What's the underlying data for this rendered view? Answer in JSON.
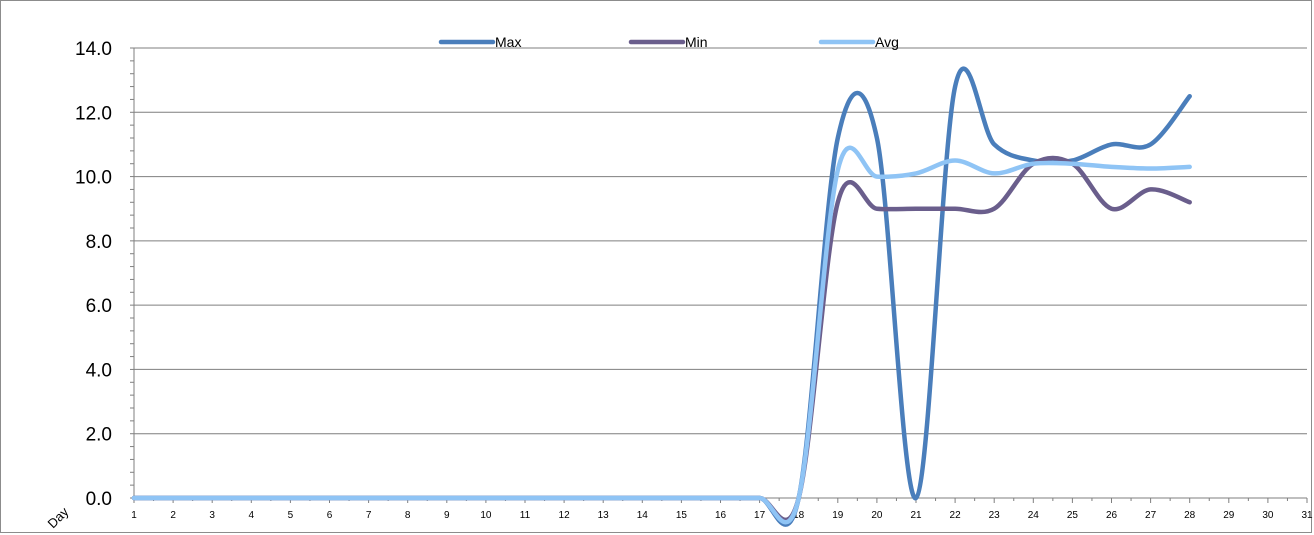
{
  "chart_data": {
    "type": "line",
    "xlabel": "Day",
    "ylabel": "",
    "ylim": [
      0,
      14
    ],
    "xlim": [
      1,
      31
    ],
    "grid": true,
    "legend_position": "top",
    "y_ticks": [
      "0.0",
      "2.0",
      "4.0",
      "6.0",
      "8.0",
      "10.0",
      "12.0",
      "14.0"
    ],
    "x_ticks": [
      "1",
      "2",
      "3",
      "4",
      "5",
      "6",
      "7",
      "8",
      "9",
      "10",
      "11",
      "12",
      "13",
      "14",
      "15",
      "16",
      "17",
      "18",
      "19",
      "20",
      "21",
      "22",
      "23",
      "24",
      "25",
      "26",
      "27",
      "28",
      "29",
      "30",
      "31"
    ],
    "series": [
      {
        "name": "Max",
        "color": "#4a7ebb",
        "x": [
          1,
          2,
          3,
          4,
          5,
          6,
          7,
          8,
          9,
          10,
          11,
          12,
          13,
          14,
          15,
          16,
          17,
          18,
          19,
          20,
          21,
          22,
          23,
          24,
          25,
          26,
          27,
          28
        ],
        "values": [
          0,
          0,
          0,
          0,
          0,
          0,
          0,
          0,
          0,
          0,
          0,
          0,
          0,
          0,
          0,
          0,
          0,
          0,
          11.2,
          11.2,
          0,
          12.8,
          11.0,
          10.5,
          10.5,
          11.0,
          11.0,
          12.5
        ]
      },
      {
        "name": "Min",
        "color": "#6a5e8c",
        "x": [
          1,
          2,
          3,
          4,
          5,
          6,
          7,
          8,
          9,
          10,
          11,
          12,
          13,
          14,
          15,
          16,
          17,
          18,
          19,
          20,
          21,
          22,
          23,
          24,
          25,
          26,
          27,
          28
        ],
        "values": [
          0,
          0,
          0,
          0,
          0,
          0,
          0,
          0,
          0,
          0,
          0,
          0,
          0,
          0,
          0,
          0,
          0,
          0,
          9.2,
          9.0,
          9.0,
          9.0,
          9.0,
          10.4,
          10.4,
          9.0,
          9.6,
          9.2
        ]
      },
      {
        "name": "Avg",
        "color": "#8fc4f5",
        "x": [
          1,
          2,
          3,
          4,
          5,
          6,
          7,
          8,
          9,
          10,
          11,
          12,
          13,
          14,
          15,
          16,
          17,
          18,
          19,
          20,
          21,
          22,
          23,
          24,
          25,
          26,
          27,
          28
        ],
        "values": [
          0,
          0,
          0,
          0,
          0,
          0,
          0,
          0,
          0,
          0,
          0,
          0,
          0,
          0,
          0,
          0,
          0,
          0,
          10.2,
          10.0,
          10.1,
          10.5,
          10.1,
          10.4,
          10.4,
          10.3,
          10.25,
          10.3
        ]
      }
    ]
  }
}
